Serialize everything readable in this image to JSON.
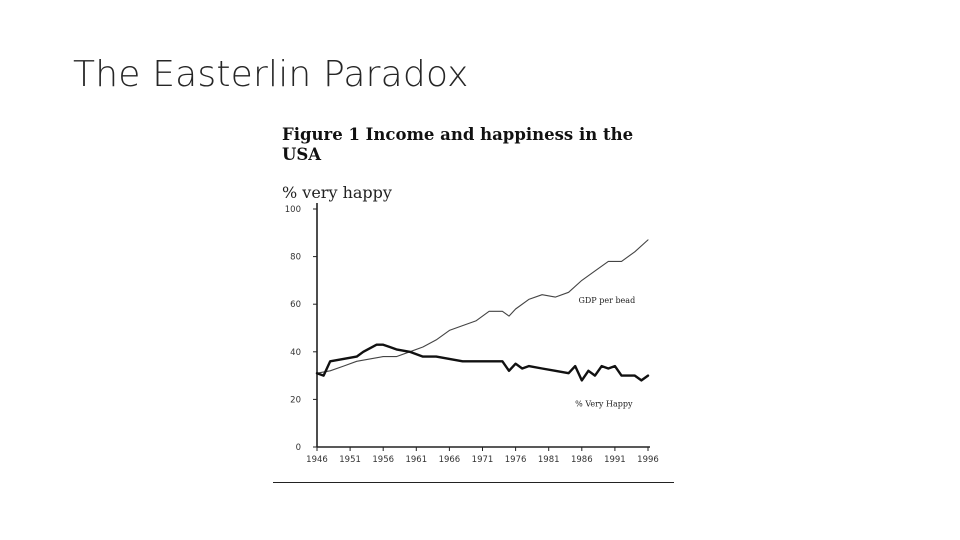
{
  "slide": {
    "title": "The Easterlin Paradox"
  },
  "figure": {
    "title": "Figure 1 Income and happiness in the USA",
    "y_axis_label": "% very happy"
  },
  "chart_data": {
    "type": "line",
    "title": "Figure 1 Income and happiness in the USA",
    "xlabel": "",
    "ylabel": "% very happy",
    "xlim": [
      1946,
      1996
    ],
    "ylim": [
      0,
      100
    ],
    "x_ticks": [
      "1946",
      "1951",
      "1956",
      "1961",
      "1966",
      "1971",
      "1976",
      "1981",
      "1986",
      "1991",
      "1996"
    ],
    "y_ticks": [
      "0",
      "20",
      "40",
      "60",
      "80",
      "100"
    ],
    "grid": false,
    "legend": "inline labels",
    "series": [
      {
        "name": "GDP per bead",
        "style": "thin",
        "color": "#444444",
        "x": [
          1946,
          1948,
          1950,
          1952,
          1954,
          1956,
          1958,
          1960,
          1962,
          1964,
          1966,
          1968,
          1970,
          1972,
          1974,
          1975,
          1976,
          1978,
          1980,
          1982,
          1984,
          1986,
          1988,
          1990,
          1992,
          1994,
          1996
        ],
        "y": [
          31,
          32,
          34,
          36,
          37,
          38,
          38,
          40,
          42,
          45,
          49,
          51,
          53,
          57,
          57,
          55,
          58,
          62,
          64,
          63,
          65,
          70,
          74,
          78,
          78,
          82,
          87
        ]
      },
      {
        "name": "% Very Happy",
        "style": "thick",
        "color": "#111111",
        "x": [
          1946,
          1947,
          1948,
          1950,
          1952,
          1953,
          1955,
          1956,
          1957,
          1958,
          1960,
          1962,
          1964,
          1966,
          1968,
          1970,
          1972,
          1974,
          1975,
          1976,
          1977,
          1978,
          1980,
          1982,
          1984,
          1985,
          1986,
          1987,
          1988,
          1989,
          1990,
          1991,
          1992,
          1993,
          1994,
          1995,
          1996
        ],
        "y": [
          31,
          30,
          36,
          37,
          38,
          40,
          43,
          43,
          42,
          41,
          40,
          38,
          38,
          37,
          36,
          36,
          36,
          36,
          32,
          35,
          33,
          34,
          33,
          32,
          31,
          34,
          28,
          32,
          30,
          34,
          33,
          34,
          30,
          30,
          30,
          28,
          30
        ]
      }
    ]
  }
}
